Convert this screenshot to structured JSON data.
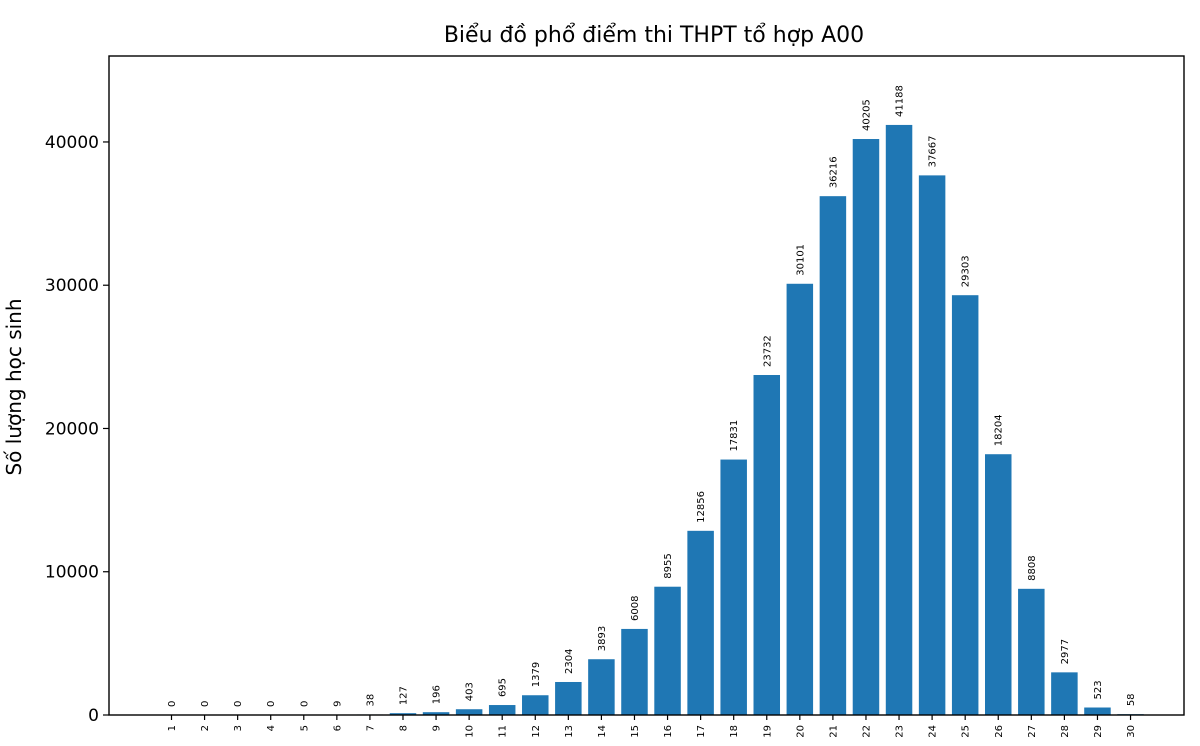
{
  "chart_data": {
    "type": "bar",
    "title": "Biểu đồ phổ điểm thi THPT tổ hợp A00",
    "xlabel": "",
    "ylabel": "Số lượng học sinh",
    "categories": [
      "1",
      "2",
      "3",
      "4",
      "5",
      "6",
      "7",
      "8",
      "9",
      "10",
      "11",
      "12",
      "13",
      "14",
      "15",
      "16",
      "17",
      "18",
      "19",
      "20",
      "21",
      "22",
      "23",
      "24",
      "25",
      "26",
      "27",
      "28",
      "29",
      "30"
    ],
    "values": [
      0,
      0,
      0,
      0,
      0,
      9,
      38,
      127,
      196,
      403,
      695,
      1379,
      2304,
      3893,
      6008,
      8955,
      12856,
      17831,
      23732,
      30101,
      36216,
      40205,
      41188,
      37667,
      29303,
      18204,
      8808,
      2977,
      523,
      58
    ],
    "data_labels": [
      "0",
      "0",
      "0",
      "0",
      "0",
      "9",
      "38",
      "127",
      "196",
      "403",
      "695",
      "1379",
      "2304",
      "3893",
      "6008",
      "8955",
      "12856",
      "17831",
      "23732",
      "30101",
      "36216",
      "40205",
      "41188",
      "37667",
      "29303",
      "18204",
      "8808",
      "2977",
      "523",
      "58"
    ],
    "yticks": [
      0,
      10000,
      20000,
      30000,
      40000
    ],
    "ytick_labels": [
      "0",
      "10000",
      "20000",
      "30000",
      "40000"
    ],
    "ylim": [
      0,
      46000
    ],
    "bar_color": "#1f77b4",
    "grid": false,
    "legend": "none"
  }
}
